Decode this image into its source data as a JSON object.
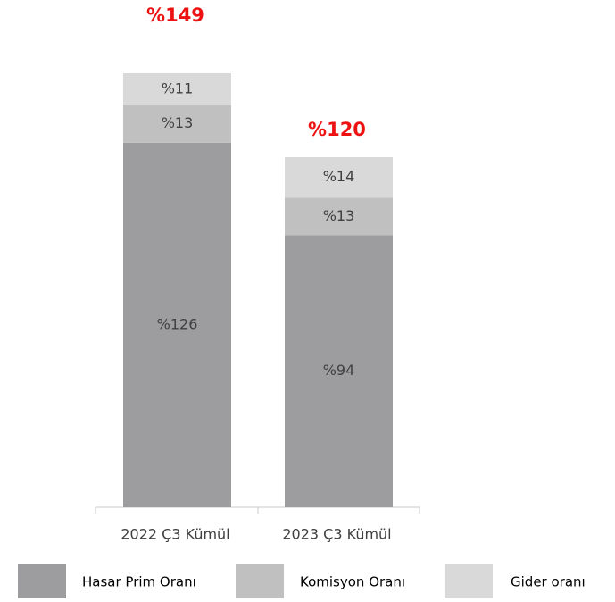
{
  "chart_data": {
    "type": "stacked_bar",
    "categories": [
      "2022 Ç3 Kümül",
      "2023 Ç3 Kümül"
    ],
    "series": [
      {
        "name": "Hasar Prim Oranı",
        "color": "#9d9d9f",
        "values": [
          126,
          94
        ],
        "value_labels": [
          "%126",
          "%94"
        ]
      },
      {
        "name": "Komisyon Oranı",
        "color": "#c0c0c0",
        "values": [
          13,
          13
        ],
        "value_labels": [
          "%13",
          "%13"
        ]
      },
      {
        "name": "Gider oranı",
        "color": "#d9d9d9",
        "values": [
          11,
          14
        ],
        "value_labels": [
          "%11",
          "%14"
        ]
      }
    ],
    "totals": [
      149,
      120
    ],
    "total_labels": [
      "%149",
      "%120"
    ],
    "total_color": "#ee1111"
  }
}
